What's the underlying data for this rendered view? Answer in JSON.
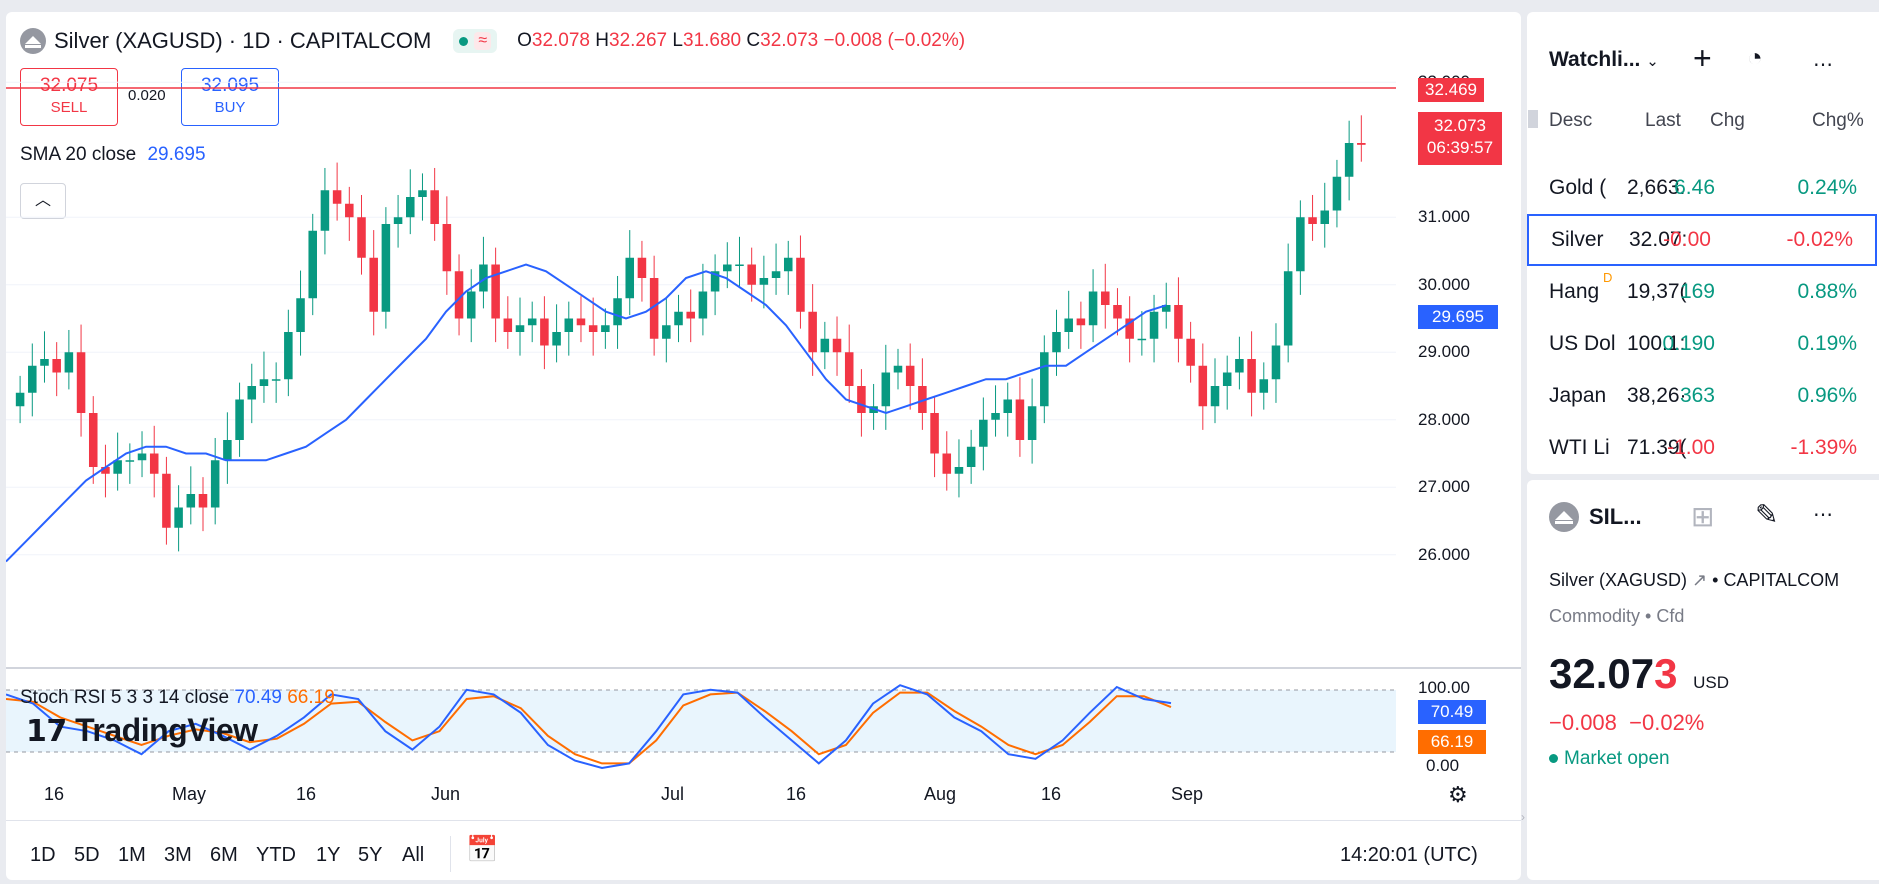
{
  "header": {
    "symbol": "Silver (XAGUSD) · 1D · CAPITALCOM",
    "ohlc": {
      "o_label": "O",
      "o": "32.078",
      "h_label": "H",
      "h": "32.267",
      "l_label": "L",
      "l": "31.680",
      "c_label": "C",
      "c": "32.073",
      "chg": "−0.008 (−0.02%)"
    }
  },
  "trade": {
    "sell_price": "32.075",
    "sell_label": "SELL",
    "spread": "0.020",
    "buy_price": "32.095",
    "buy_label": "BUY"
  },
  "indicators": {
    "sma_label": "SMA 20 close",
    "sma_value": "29.695",
    "stoch_label": "Stoch RSI 5 3 3 14 close",
    "stoch_k": "70.49",
    "stoch_d": "66.19"
  },
  "price_axis": {
    "ticks": [
      "33.000",
      "31.000",
      "30.000",
      "29.000",
      "28.000",
      "27.000",
      "26.000"
    ],
    "high_tag": "32.469",
    "last_tag": "32.073",
    "countdown": "06:39:57",
    "sma_tag": "29.695",
    "rsi_ticks": [
      "100.00",
      "0.00"
    ],
    "rsi_k_tag": "70.49",
    "rsi_d_tag": "66.19"
  },
  "time_axis": [
    "16",
    "May",
    "16",
    "Jun",
    "Jul",
    "16",
    "Aug",
    "16",
    "Sep"
  ],
  "timeframes": [
    "1D",
    "5D",
    "1M",
    "3M",
    "6M",
    "YTD",
    "1Y",
    "5Y",
    "All"
  ],
  "clock": "14:20:01 (UTC)",
  "logo": "TradingView",
  "watchlist": {
    "title": "Watchli...",
    "columns": [
      "Desc",
      "Last",
      "Chg",
      "Chg%"
    ],
    "rows": [
      {
        "name": "Gold (",
        "last": "2,663.",
        "chg": "6.46",
        "pct": "0.24%",
        "dir": "up"
      },
      {
        "name": "Silver",
        "last": "32.07:",
        "chg": "-0.00",
        "pct": "-0.02%",
        "dir": "down"
      },
      {
        "name": "Hang",
        "last": "19,37(",
        "chg": "169",
        "pct": "0.88%",
        "dir": "up"
      },
      {
        "name": "US Dol",
        "last": "100.1:",
        "chg": "0.190",
        "pct": "0.19%",
        "dir": "up"
      },
      {
        "name": "Japan",
        "last": "38,26·",
        "chg": "363",
        "pct": "0.96%",
        "dir": "up"
      },
      {
        "name": "WTI Li",
        "last": "71.39(",
        "chg": "-1.00",
        "pct": "-1.39%",
        "dir": "down"
      }
    ],
    "hang_badge": "D"
  },
  "details": {
    "short_name": "SIL...",
    "full_name": "Silver (XAGUSD)",
    "exchange": "CAPITALCOM",
    "category": "Commodity • Cfd",
    "price_main": "32.07",
    "price_last_digit": "3",
    "currency": "USD",
    "change": "−0.008",
    "change_pct": "−0.02%",
    "market_status": "Market open"
  },
  "colors": {
    "up": "#089981",
    "down": "#f23645",
    "sma": "#2962ff",
    "stoch_k": "#2962ff",
    "stoch_d": "#ff6d00"
  },
  "chart_data": {
    "type": "candlestick",
    "y_range": [
      25.3,
      33.3
    ],
    "close_series": [
      28.4,
      28.8,
      28.9,
      28.7,
      29.0,
      28.1,
      27.3,
      27.2,
      27.4,
      27.4,
      27.5,
      27.2,
      26.4,
      26.7,
      26.9,
      26.7,
      27.4,
      27.7,
      28.3,
      28.5,
      28.6,
      28.6,
      29.3,
      29.8,
      30.8,
      31.4,
      31.2,
      31.0,
      30.4,
      29.6,
      30.9,
      31.0,
      31.3,
      31.4,
      30.9,
      30.2,
      29.5,
      29.9,
      30.3,
      29.5,
      29.3,
      29.4,
      29.5,
      29.1,
      29.3,
      29.5,
      29.4,
      29.3,
      29.4,
      29.8,
      30.4,
      30.1,
      29.2,
      29.4,
      29.6,
      29.5,
      29.9,
      30.2,
      30.3,
      30.3,
      30.0,
      30.1,
      30.2,
      30.4,
      29.6,
      29.0,
      29.2,
      29.0,
      28.5,
      28.1,
      28.2,
      28.7,
      28.8,
      28.5,
      28.1,
      27.5,
      27.2,
      27.3,
      27.6,
      28.0,
      28.1,
      28.3,
      27.7,
      28.2,
      29.0,
      29.3,
      29.5,
      29.4,
      29.9,
      29.7,
      29.5,
      29.2,
      29.2,
      29.6,
      29.7,
      29.2,
      28.8,
      28.2,
      28.5,
      28.7,
      28.9,
      28.4,
      28.6,
      29.1,
      30.2,
      31.0,
      30.9,
      31.1,
      31.6,
      32.1,
      32.073
    ],
    "sma_20": [
      25.9,
      26.2,
      26.5,
      26.8,
      27.1,
      27.3,
      27.5,
      27.6,
      27.6,
      27.5,
      27.5,
      27.4,
      27.4,
      27.4,
      27.5,
      27.6,
      27.8,
      28.0,
      28.3,
      28.6,
      28.9,
      29.2,
      29.6,
      29.9,
      30.1,
      30.2,
      30.3,
      30.2,
      30.0,
      29.8,
      29.6,
      29.5,
      29.6,
      29.8,
      30.1,
      30.2,
      30.1,
      29.9,
      29.7,
      29.4,
      29.0,
      28.6,
      28.3,
      28.2,
      28.1,
      28.2,
      28.3,
      28.4,
      28.5,
      28.6,
      28.6,
      28.7,
      28.8,
      28.8,
      29.0,
      29.2,
      29.4,
      29.6,
      29.695
    ],
    "stoch_k": [
      80,
      70,
      45,
      40,
      30,
      15,
      40,
      48,
      35,
      20,
      35,
      55,
      80,
      75,
      40,
      20,
      45,
      85,
      80,
      60,
      25,
      8,
      0,
      5,
      40,
      80,
      85,
      82,
      55,
      30,
      5,
      30,
      70,
      90,
      80,
      55,
      40,
      15,
      10,
      30,
      60,
      88,
      75,
      70.49
    ],
    "stoch_d": [
      75,
      72,
      55,
      45,
      35,
      25,
      35,
      42,
      38,
      28,
      32,
      48,
      70,
      72,
      50,
      30,
      40,
      75,
      78,
      65,
      35,
      15,
      5,
      5,
      30,
      68,
      80,
      82,
      62,
      40,
      15,
      25,
      60,
      82,
      82,
      62,
      45,
      25,
      15,
      25,
      50,
      78,
      78,
      66.19
    ]
  }
}
